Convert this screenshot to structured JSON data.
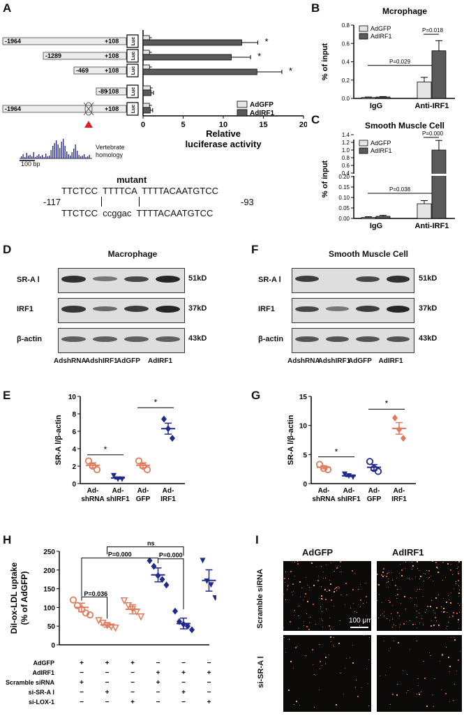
{
  "colors": {
    "light_bar": "#e6e6e6",
    "dark_bar": "#5a5a5a",
    "orange": "#e07a5a",
    "blue": "#1f2a8c"
  },
  "panel_letters": {
    "A": "A",
    "B": "B",
    "C": "C",
    "D": "D",
    "E": "E",
    "F": "F",
    "G": "G",
    "H": "H",
    "I": "I"
  },
  "panel_a": {
    "constructs": [
      {
        "start": "-1964",
        "end": "+108",
        "luc": "Luc",
        "mutant": false
      },
      {
        "start": "-1289",
        "end": "+108",
        "luc": "Luc",
        "mutant": false
      },
      {
        "start": "-469",
        "end": "+108",
        "luc": "Luc",
        "mutant": false
      },
      {
        "start": "-89",
        "end": "+108",
        "luc": "Luc",
        "mutant": false
      },
      {
        "start": "-1964",
        "end": "+108",
        "luc": "Luc",
        "mutant": true
      }
    ],
    "homology_label_1": "Vertebrate",
    "homology_label_2": "homology",
    "scale_bar": "100 bp",
    "mutant_label": "mutant",
    "seq_top": "TTCTCC  TTTTCA  TTTTACAATGTCC",
    "seq_left_pos": "-117",
    "seq_right_pos": "-93",
    "seq_bottom": "TTCTCC  ccggac  TTTTACAATGTCC"
  },
  "chart_data": [
    {
      "id": "A",
      "type": "bar",
      "orientation": "horizontal",
      "categories": [
        "-1964/+108",
        "-1289/+108",
        "-469/+108",
        "-89/+108",
        "-1964/+108 mutant"
      ],
      "series": [
        {
          "name": "AdGFP",
          "values": [
            0.8,
            0.8,
            0.8,
            0.9,
            0.8
          ],
          "errors": [
            0.3,
            0.3,
            0.3,
            0.3,
            0.3
          ]
        },
        {
          "name": "AdIRF1",
          "values": [
            12.3,
            11.0,
            14.2,
            1.0,
            0.9
          ],
          "errors": [
            2.0,
            2.4,
            3.1,
            0.3,
            0.3
          ]
        }
      ],
      "significance": [
        "*",
        "*",
        "*",
        "",
        ""
      ],
      "xlabel_1": "Relative",
      "xlabel_2": "luciferase activity",
      "xlim": [
        0,
        20
      ],
      "xticks": [
        "0",
        "5",
        "10",
        "15",
        "20"
      ],
      "legend": "bottom-right"
    },
    {
      "id": "B",
      "type": "bar",
      "title": "Mcrophage",
      "categories": [
        "IgG",
        "Anti-IRF1"
      ],
      "series": [
        {
          "name": "AdGFP",
          "values": [
            0.01,
            0.18
          ],
          "errors": [
            0.005,
            0.05
          ]
        },
        {
          "name": "AdIRF1",
          "values": [
            0.015,
            0.52
          ],
          "errors": [
            0.005,
            0.11
          ]
        }
      ],
      "ylabel": "% of input",
      "ylim": [
        0,
        0.8
      ],
      "yticks": [
        "0.0",
        "0.2",
        "0.4",
        "0.6",
        "0.8"
      ],
      "annotations": [
        "P=0.029",
        "P=0.018"
      ],
      "legend": "top-left"
    },
    {
      "id": "C",
      "type": "bar",
      "title": "Smooth Muscle Cell",
      "categories": [
        "IgG",
        "Anti-IRF1"
      ],
      "series": [
        {
          "name": "AdGFP",
          "values": [
            0.005,
            0.07
          ],
          "errors": [
            0.003,
            0.015
          ]
        },
        {
          "name": "AdIRF1",
          "values": [
            0.01,
            1.0
          ],
          "errors": [
            0.005,
            0.25
          ]
        }
      ],
      "ylabel": "% of input",
      "axis_break": [
        0.2,
        0.4
      ],
      "yticks": [
        "0.00",
        "0.05",
        "0.10",
        "0.15",
        "0.20",
        "0.4",
        "0.6",
        "0.8",
        "1.0",
        "1.2",
        "1.4"
      ],
      "annotations": [
        "P=0.038",
        "P=0.000"
      ],
      "legend": "top-left"
    },
    {
      "id": "E",
      "type": "scatter",
      "categories": [
        "Ad-shRNA",
        "Ad-shIRF1",
        "Ad-GFP",
        "Ad-IRF1"
      ],
      "points": [
        [
          2.6,
          2.0,
          1.6
        ],
        [
          0.9,
          0.5,
          0.5
        ],
        [
          2.6,
          2.0,
          1.6
        ],
        [
          7.4,
          6.3,
          5.2
        ]
      ],
      "means": [
        2.1,
        0.65,
        2.1,
        6.3
      ],
      "ylabel": "SR-A Ⅰ/β-actin",
      "ylim": [
        0,
        10
      ],
      "yticks": [
        "0",
        "2",
        "4",
        "6",
        "8",
        "10"
      ],
      "significance": [
        "*",
        "*"
      ]
    },
    {
      "id": "G",
      "type": "scatter",
      "categories": [
        "Ad-shRNA",
        "Ad-shIRF1",
        "Ad-GFP",
        "Ad-IRF1"
      ],
      "points": [
        [
          3.3,
          2.6,
          2.4
        ],
        [
          1.6,
          1.3,
          1.1
        ],
        [
          3.8,
          2.6,
          2.1
        ],
        [
          11.3,
          9.3,
          7.8
        ]
      ],
      "means": [
        2.8,
        1.35,
        2.8,
        9.5
      ],
      "ylabel": "SR-A Ⅰ/β-actin",
      "ylim": [
        0,
        15
      ],
      "yticks": [
        "0",
        "5",
        "10",
        "15"
      ],
      "significance": [
        "*",
        "*"
      ]
    },
    {
      "id": "H",
      "type": "scatter",
      "categories": [
        "1",
        "2",
        "3",
        "4",
        "5",
        "6"
      ],
      "points": [
        [
          120,
          105,
          95,
          85,
          80
        ],
        [
          65,
          58,
          52,
          48,
          45
        ],
        [
          118,
          105,
          95,
          88,
          75
        ],
        [
          225,
          210,
          185,
          175,
          160
        ],
        [
          90,
          62,
          55,
          50,
          40
        ],
        [
          225,
          170,
          160,
          125
        ]
      ],
      "means": [
        100,
        53,
        95,
        187,
        57,
        172
      ],
      "ylabel_1": "DiI-ox-LDL uptake",
      "ylabel_2": "(% of AdGFP)",
      "ylim": [
        0,
        250
      ],
      "yticks": [
        "0",
        "50",
        "100",
        "150",
        "200",
        "250"
      ],
      "annotations": [
        "P=0.036",
        "P=0.000",
        "P=0.000",
        "ns"
      ],
      "row_labels": [
        "AdGFP",
        "AdIRF1",
        "Scramble siRNA",
        "si-SR-A Ⅰ",
        "si-LOX-1"
      ],
      "treatment_table": [
        [
          "+",
          "+",
          "+",
          "−",
          "−",
          "−"
        ],
        [
          "−",
          "−",
          "−",
          "+",
          "+",
          "+"
        ],
        [
          "+",
          "−",
          "−",
          "+",
          "−",
          "−"
        ],
        [
          "−",
          "+",
          "−",
          "−",
          "+",
          "−"
        ],
        [
          "−",
          "−",
          "+",
          "−",
          "−",
          "+"
        ]
      ]
    }
  ],
  "panel_d": {
    "title": "Macrophage",
    "rows": [
      "SR-A Ⅰ",
      "IRF1",
      "β-actin"
    ],
    "sizes": [
      "51kD",
      "37kD",
      "43kD"
    ],
    "lanes": [
      "AdshRNA",
      "AdshIRF1",
      "AdGFP",
      "AdIRF1"
    ]
  },
  "panel_f": {
    "title": "Smooth Muscle Cell",
    "rows": [
      "SR-A Ⅰ",
      "IRF1",
      "β-actin"
    ],
    "sizes": [
      "51kD",
      "37kD",
      "43kD"
    ],
    "lanes": [
      "AdshRNA",
      "AdshIRF1",
      "AdGFP",
      "AdIRF1"
    ]
  },
  "panel_i": {
    "col_labels": [
      "AdGFP",
      "AdIRF1"
    ],
    "row_labels": [
      "Scramble siRNA",
      "si-SR-A Ⅰ"
    ],
    "scale_bar": "100 μm"
  }
}
